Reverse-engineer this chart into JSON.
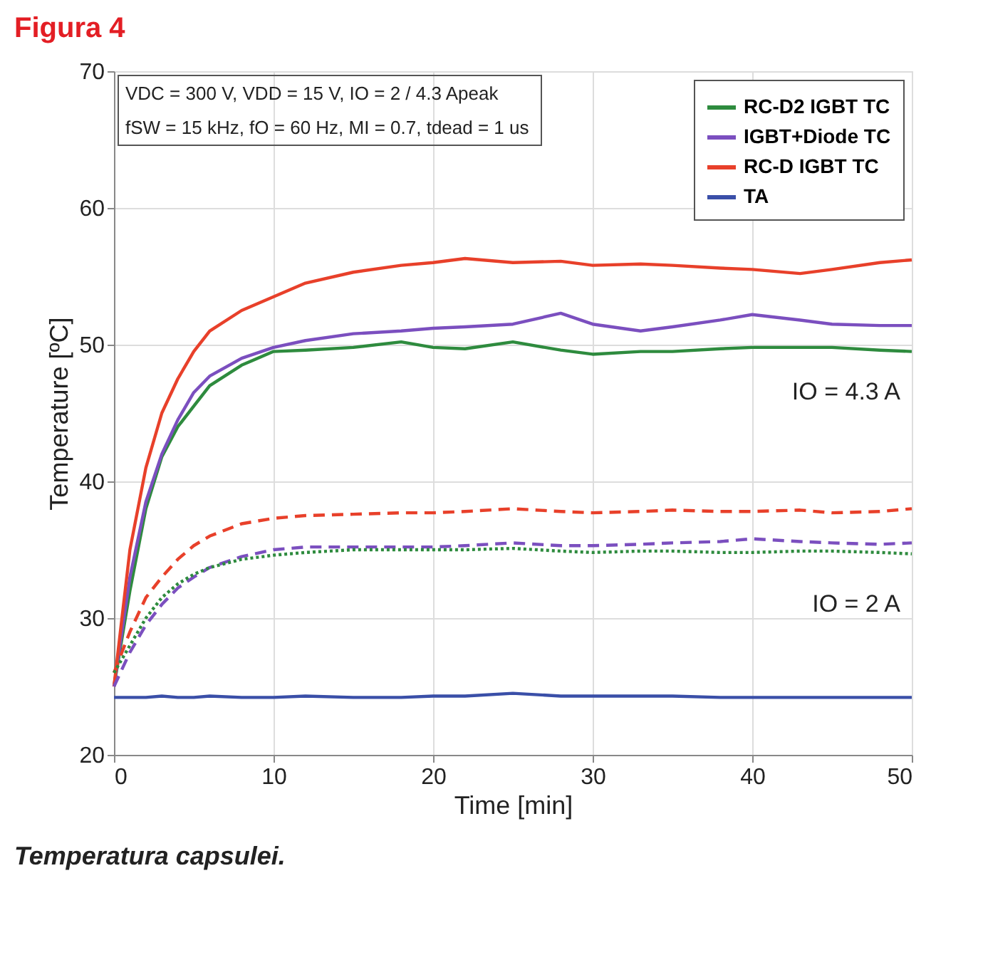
{
  "chart_data": {
    "type": "line",
    "title": "Figura 4",
    "xlabel": "Time [min]",
    "ylabel": "Temperature [ºC]",
    "x": [
      0,
      1,
      2,
      3,
      4,
      5,
      6,
      8,
      10,
      12,
      15,
      18,
      20,
      22,
      25,
      28,
      30,
      33,
      35,
      38,
      40,
      43,
      45,
      48,
      50
    ],
    "series": [
      {
        "name": "RC-D2 IGBT TC",
        "color": "#2e8b3e",
        "line_style": "solid",
        "values": [
          25,
          32,
          38,
          41.8,
          44,
          45.5,
          47,
          48.5,
          49.5,
          49.6,
          49.8,
          50.2,
          49.8,
          49.7,
          50.2,
          49.6,
          49.3,
          49.5,
          49.5,
          49.7,
          49.8,
          49.8,
          49.8,
          49.6,
          49.5
        ]
      },
      {
        "name": "IGBT+Diode TC",
        "color": "#7b4fbf",
        "line_style": "solid",
        "values": [
          25,
          33,
          38.5,
          42,
          44.5,
          46.5,
          47.7,
          49,
          49.8,
          50.3,
          50.8,
          51,
          51.2,
          51.3,
          51.5,
          52.3,
          51.5,
          51,
          51.3,
          51.8,
          52.2,
          51.8,
          51.5,
          51.4,
          51.4
        ]
      },
      {
        "name": "RC-D IGBT TC",
        "color": "#e8402a",
        "line_style": "solid",
        "values": [
          25,
          35,
          41,
          45,
          47.5,
          49.5,
          51,
          52.5,
          53.5,
          54.5,
          55.3,
          55.8,
          56,
          56.3,
          56,
          56.1,
          55.8,
          55.9,
          55.8,
          55.6,
          55.5,
          55.2,
          55.5,
          56,
          56.2
        ]
      },
      {
        "name": "TA",
        "color": "#3a4fa8",
        "line_style": "solid",
        "values": [
          24.2,
          24.2,
          24.2,
          24.3,
          24.2,
          24.2,
          24.3,
          24.2,
          24.2,
          24.3,
          24.2,
          24.2,
          24.3,
          24.3,
          24.5,
          24.3,
          24.3,
          24.3,
          24.3,
          24.2,
          24.2,
          24.2,
          24.2,
          24.2,
          24.2
        ]
      },
      {
        "color": "#e8402a",
        "line_style": "dashed",
        "values": [
          26,
          29,
          31.5,
          33,
          34.3,
          35.3,
          36,
          36.9,
          37.3,
          37.5,
          37.6,
          37.7,
          37.7,
          37.8,
          38,
          37.8,
          37.7,
          37.8,
          37.9,
          37.8,
          37.8,
          37.9,
          37.7,
          37.8,
          38
        ]
      },
      {
        "color": "#7b4fbf",
        "line_style": "dashed",
        "values": [
          25,
          27.5,
          29.5,
          31,
          32.2,
          33,
          33.7,
          34.5,
          35,
          35.2,
          35.2,
          35.2,
          35.2,
          35.3,
          35.5,
          35.3,
          35.3,
          35.4,
          35.5,
          35.6,
          35.8,
          35.6,
          35.5,
          35.4,
          35.5
        ]
      },
      {
        "color": "#2e8b3e",
        "line_style": "dotted",
        "values": [
          26,
          28,
          30,
          31.5,
          32.5,
          33.2,
          33.7,
          34.3,
          34.6,
          34.8,
          35,
          35,
          35,
          35,
          35.1,
          34.9,
          34.8,
          34.9,
          34.9,
          34.8,
          34.8,
          34.9,
          34.9,
          34.8,
          34.7
        ]
      }
    ],
    "xlim": [
      0,
      50
    ],
    "xticks": [
      0,
      10,
      20,
      30,
      40,
      50
    ],
    "ylim": [
      20,
      70
    ],
    "yticks": [
      20,
      30,
      40,
      50,
      60,
      70
    ],
    "grid": true,
    "legend": "top right",
    "annotations": [
      "VDC = 300 V, VDD = 15 V, IO = 2 / 4.3 Apeak",
      "fSW = 15 kHz, fO = 60 Hz, MI = 0.7, tdead = 1 us",
      "IO = 4.3 A",
      "IO = 2 A",
      "Temperatura capsulei."
    ]
  }
}
